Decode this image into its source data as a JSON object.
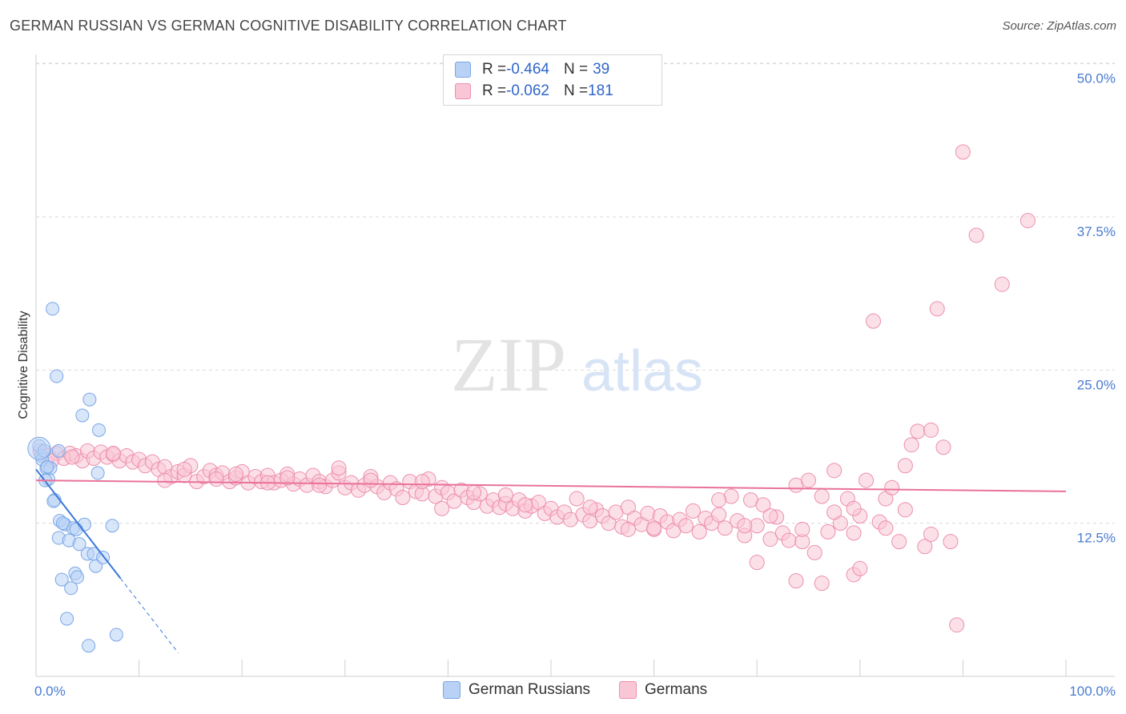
{
  "title": "GERMAN RUSSIAN VS GERMAN COGNITIVE DISABILITY CORRELATION CHART",
  "source": "Source: ZipAtlas.com",
  "watermark": {
    "zip": "ZIP",
    "atlas": "atlas"
  },
  "colors": {
    "blue_fill": "#b8d1f5",
    "blue_stroke": "#7aa6e6",
    "blue_line": "#3a78d8",
    "pink_fill": "#f9c6d6",
    "pink_stroke": "#ec8fae",
    "pink_line": "#e9729b",
    "grid": "#d9d9d9",
    "axis_text": "#4a7bd0"
  },
  "legend": {
    "rows": [
      {
        "r_label": "R = ",
        "r_value": "-0.464",
        "n_label": "N = ",
        "n_value": "39"
      },
      {
        "r_label": "R = ",
        "r_value": "-0.062",
        "n_label": "N = ",
        "n_value": "181"
      }
    ]
  },
  "bottom_legend": {
    "series1": "German Russians",
    "series2": "Germans"
  },
  "chart_data": {
    "type": "scatter",
    "title": "GERMAN RUSSIAN VS GERMAN COGNITIVE DISABILITY CORRELATION CHART",
    "ylabel": "Cognitive Disability",
    "xlabel": "",
    "xlim": [
      0,
      100
    ],
    "ylim": [
      0,
      50.5
    ],
    "x_ticks": [
      "0.0%",
      "100.0%"
    ],
    "y_ticks": [
      {
        "value": 12.5,
        "label": "12.5%"
      },
      {
        "value": 25.0,
        "label": "25.0%"
      },
      {
        "value": 37.5,
        "label": "37.5%"
      },
      {
        "value": 50.0,
        "label": "50.0%"
      }
    ],
    "grid": true,
    "legend_position": "top-center",
    "series": [
      {
        "name": "German Russians",
        "r": -0.464,
        "n": 39,
        "trend": {
          "x0": 0,
          "y0": 16.9,
          "x1": 8.2,
          "y1": 8.0,
          "dash_to_x": 13.8
        },
        "points": [
          [
            0.3,
            18.8
          ],
          [
            0.5,
            18.0
          ],
          [
            0.6,
            17.7
          ],
          [
            0.8,
            18.4
          ],
          [
            1.0,
            17.0
          ],
          [
            1.2,
            16.1
          ],
          [
            1.4,
            17.0
          ],
          [
            1.6,
            30.0
          ],
          [
            1.8,
            14.4
          ],
          [
            2.0,
            24.5
          ],
          [
            2.2,
            18.4
          ],
          [
            2.2,
            11.3
          ],
          [
            2.3,
            12.7
          ],
          [
            2.5,
            7.9
          ],
          [
            2.8,
            12.4
          ],
          [
            3.0,
            4.7
          ],
          [
            3.2,
            11.1
          ],
          [
            3.4,
            7.2
          ],
          [
            3.6,
            12.1
          ],
          [
            3.8,
            8.4
          ],
          [
            4.0,
            8.1
          ],
          [
            4.2,
            10.8
          ],
          [
            4.5,
            21.3
          ],
          [
            4.7,
            12.4
          ],
          [
            5.0,
            10.0
          ],
          [
            5.2,
            22.6
          ],
          [
            5.1,
            2.5
          ],
          [
            5.6,
            10.0
          ],
          [
            5.8,
            9.0
          ],
          [
            6.0,
            16.6
          ],
          [
            6.1,
            20.1
          ],
          [
            6.5,
            9.7
          ],
          [
            7.4,
            12.3
          ],
          [
            7.8,
            3.4
          ],
          [
            0.9,
            16.0
          ],
          [
            1.1,
            17.1
          ],
          [
            1.7,
            14.3
          ],
          [
            3.9,
            12.0
          ],
          [
            2.6,
            12.5
          ]
        ]
      },
      {
        "name": "Germans",
        "r": -0.062,
        "n": 181,
        "trend": {
          "x0": 0,
          "y0": 16.0,
          "x1": 100,
          "y1": 15.1
        },
        "points": [
          [
            0.4,
            18.4
          ],
          [
            1.2,
            18.0
          ],
          [
            2.0,
            18.2
          ],
          [
            2.7,
            17.8
          ],
          [
            3.3,
            18.2
          ],
          [
            3.9,
            18.0
          ],
          [
            4.5,
            17.6
          ],
          [
            5.0,
            18.4
          ],
          [
            5.6,
            17.8
          ],
          [
            6.3,
            18.3
          ],
          [
            6.9,
            17.9
          ],
          [
            7.5,
            18.1
          ],
          [
            8.1,
            17.6
          ],
          [
            8.8,
            18.0
          ],
          [
            9.4,
            17.5
          ],
          [
            10.0,
            17.7
          ],
          [
            10.6,
            17.2
          ],
          [
            11.3,
            17.5
          ],
          [
            11.9,
            16.9
          ],
          [
            12.5,
            17.1
          ],
          [
            13.1,
            16.3
          ],
          [
            13.8,
            16.7
          ],
          [
            14.4,
            16.4
          ],
          [
            15.0,
            17.2
          ],
          [
            15.6,
            15.9
          ],
          [
            16.3,
            16.3
          ],
          [
            16.9,
            16.8
          ],
          [
            17.5,
            16.4
          ],
          [
            18.1,
            16.6
          ],
          [
            18.8,
            15.9
          ],
          [
            19.4,
            16.2
          ],
          [
            20.0,
            16.7
          ],
          [
            20.6,
            15.8
          ],
          [
            21.3,
            16.3
          ],
          [
            21.9,
            15.9
          ],
          [
            22.5,
            16.4
          ],
          [
            23.1,
            15.8
          ],
          [
            23.8,
            16.0
          ],
          [
            24.4,
            16.5
          ],
          [
            25.0,
            15.7
          ],
          [
            25.6,
            16.1
          ],
          [
            26.3,
            15.6
          ],
          [
            26.9,
            16.4
          ],
          [
            27.5,
            15.9
          ],
          [
            28.1,
            15.5
          ],
          [
            28.8,
            16.0
          ],
          [
            29.4,
            16.6
          ],
          [
            30.0,
            15.4
          ],
          [
            30.6,
            15.8
          ],
          [
            31.3,
            15.2
          ],
          [
            31.9,
            15.6
          ],
          [
            32.5,
            16.3
          ],
          [
            33.1,
            15.5
          ],
          [
            33.8,
            15.0
          ],
          [
            34.4,
            15.8
          ],
          [
            35.0,
            15.3
          ],
          [
            35.6,
            14.6
          ],
          [
            36.3,
            15.9
          ],
          [
            36.9,
            15.1
          ],
          [
            37.5,
            14.9
          ],
          [
            38.1,
            16.1
          ],
          [
            38.8,
            14.7
          ],
          [
            39.4,
            15.4
          ],
          [
            40.0,
            15.0
          ],
          [
            40.6,
            14.3
          ],
          [
            41.3,
            15.2
          ],
          [
            41.9,
            14.6
          ],
          [
            42.5,
            14.2
          ],
          [
            43.1,
            14.9
          ],
          [
            43.8,
            13.9
          ],
          [
            44.4,
            14.4
          ],
          [
            45.0,
            13.8
          ],
          [
            45.6,
            14.1
          ],
          [
            46.3,
            13.7
          ],
          [
            46.9,
            14.4
          ],
          [
            47.5,
            13.5
          ],
          [
            48.1,
            13.9
          ],
          [
            48.8,
            14.2
          ],
          [
            49.4,
            13.3
          ],
          [
            50.0,
            13.7
          ],
          [
            50.6,
            13.0
          ],
          [
            51.3,
            13.4
          ],
          [
            51.9,
            12.8
          ],
          [
            52.5,
            14.5
          ],
          [
            53.1,
            13.2
          ],
          [
            53.8,
            12.7
          ],
          [
            54.4,
            13.6
          ],
          [
            55.0,
            13.1
          ],
          [
            55.6,
            12.5
          ],
          [
            56.3,
            13.4
          ],
          [
            56.9,
            12.2
          ],
          [
            57.5,
            13.8
          ],
          [
            58.1,
            12.9
          ],
          [
            58.8,
            12.4
          ],
          [
            59.4,
            13.3
          ],
          [
            60.0,
            12.0
          ],
          [
            60.6,
            13.1
          ],
          [
            61.3,
            12.6
          ],
          [
            61.9,
            11.9
          ],
          [
            62.5,
            12.8
          ],
          [
            63.1,
            12.3
          ],
          [
            63.8,
            13.5
          ],
          [
            64.4,
            11.8
          ],
          [
            65.0,
            12.9
          ],
          [
            65.6,
            12.5
          ],
          [
            66.3,
            13.2
          ],
          [
            66.9,
            12.1
          ],
          [
            67.5,
            14.7
          ],
          [
            68.1,
            12.7
          ],
          [
            68.8,
            11.5
          ],
          [
            69.4,
            14.4
          ],
          [
            70.0,
            12.3
          ],
          [
            70.6,
            14.0
          ],
          [
            71.3,
            11.2
          ],
          [
            71.9,
            13.0
          ],
          [
            72.5,
            11.7
          ],
          [
            73.1,
            11.1
          ],
          [
            73.8,
            15.6
          ],
          [
            74.4,
            11.0
          ],
          [
            75.0,
            16.0
          ],
          [
            75.6,
            10.1
          ],
          [
            76.3,
            14.7
          ],
          [
            76.9,
            11.8
          ],
          [
            77.5,
            16.8
          ],
          [
            78.1,
            12.5
          ],
          [
            78.8,
            14.5
          ],
          [
            79.4,
            11.7
          ],
          [
            80.0,
            13.1
          ],
          [
            80.6,
            16.0
          ],
          [
            81.3,
            29.0
          ],
          [
            81.9,
            12.6
          ],
          [
            82.5,
            14.5
          ],
          [
            83.1,
            15.4
          ],
          [
            83.8,
            11.0
          ],
          [
            84.4,
            13.6
          ],
          [
            85.0,
            18.9
          ],
          [
            85.6,
            20.0
          ],
          [
            86.3,
            10.6
          ],
          [
            86.9,
            20.1
          ],
          [
            87.5,
            30.0
          ],
          [
            88.1,
            18.7
          ],
          [
            88.8,
            11.0
          ],
          [
            89.4,
            4.2
          ],
          [
            90.0,
            42.8
          ],
          [
            91.3,
            36.0
          ],
          [
            93.8,
            32.0
          ],
          [
            96.3,
            37.2
          ],
          [
            76.3,
            7.6
          ],
          [
            73.8,
            7.8
          ],
          [
            79.4,
            8.3
          ],
          [
            80.0,
            8.8
          ],
          [
            70.0,
            9.3
          ],
          [
            60.0,
            12.1
          ],
          [
            53.8,
            13.8
          ],
          [
            47.5,
            14.0
          ],
          [
            42.5,
            15.0
          ],
          [
            37.5,
            15.9
          ],
          [
            32.5,
            16.0
          ],
          [
            27.5,
            15.6
          ],
          [
            22.5,
            15.8
          ],
          [
            17.5,
            16.1
          ],
          [
            12.5,
            16.0
          ],
          [
            7.5,
            18.2
          ],
          [
            3.5,
            17.9
          ],
          [
            1.5,
            17.6
          ],
          [
            66.3,
            14.4
          ],
          [
            71.3,
            13.1
          ],
          [
            74.4,
            12.0
          ],
          [
            77.5,
            13.4
          ],
          [
            79.4,
            13.7
          ],
          [
            82.5,
            12.1
          ],
          [
            84.4,
            17.2
          ],
          [
            86.9,
            11.6
          ],
          [
            68.8,
            12.3
          ],
          [
            57.5,
            12.0
          ],
          [
            45.6,
            14.8
          ],
          [
            39.4,
            13.7
          ],
          [
            29.4,
            17.0
          ],
          [
            24.4,
            16.2
          ],
          [
            19.4,
            16.5
          ],
          [
            14.4,
            16.9
          ]
        ]
      }
    ]
  }
}
